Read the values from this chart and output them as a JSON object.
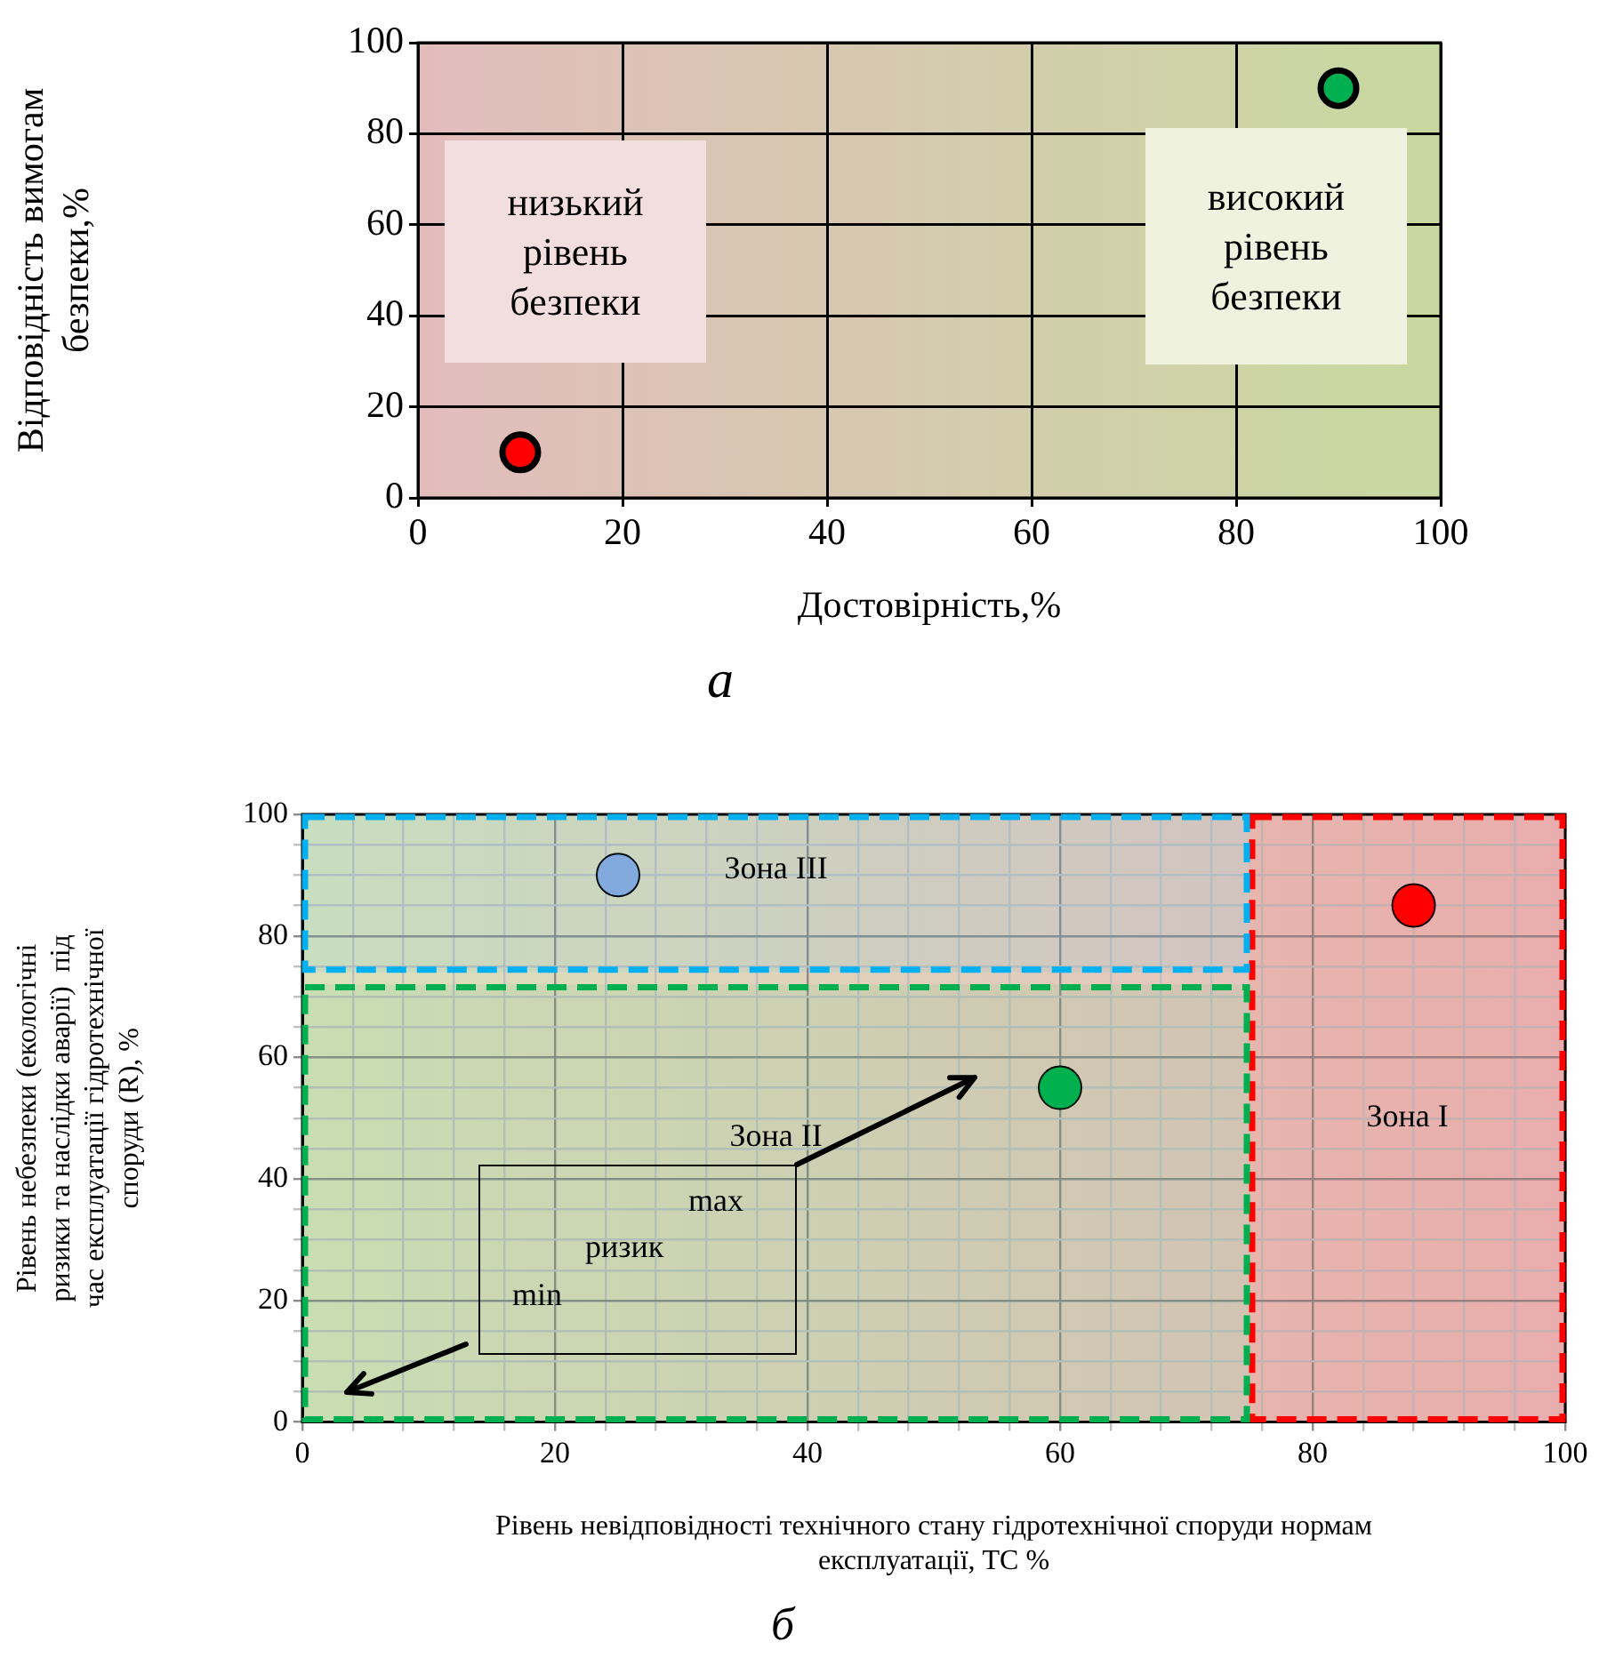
{
  "chart_data": [
    {
      "type": "scatter",
      "title": "а",
      "xlabel": "Достовірність,%",
      "ylabel": "Відповідність вимогам безпеки,%",
      "x": [
        10,
        90
      ],
      "values": [
        10,
        90
      ],
      "colors": [
        "#ff0000",
        "#00b050"
      ],
      "marker": "circle",
      "xlim": [
        0,
        100
      ],
      "ylim": [
        0,
        100
      ],
      "xticks": [
        0,
        20,
        40,
        60,
        80,
        100
      ],
      "yticks": [
        0,
        20,
        40,
        60,
        80,
        100
      ],
      "grid": true,
      "legend": false,
      "annotations": [
        "низький рівень безпеки",
        "високий рівень безпеки"
      ]
    },
    {
      "type": "scatter",
      "title": "б",
      "xlabel": "Рівень невідповідності технічного стану гідротехнічної споруди нормам експлуатації, ТС %",
      "ylabel": "Рівень небезпеки (екологічні ризики та наслідки аварії)  під час експлуатації гідротехнічної споруди (R), %",
      "x": [
        25,
        60,
        88
      ],
      "values": [
        90,
        55,
        85
      ],
      "colors": [
        "#8eaadb",
        "#00b050",
        "#ff0000"
      ],
      "marker": "circle",
      "xlim": [
        0,
        100
      ],
      "ylim": [
        0,
        100
      ],
      "xticks": [
        0,
        {
          "value": 4,
          "label": null
        },
        {
          "value": 8,
          "label": null
        },
        {
          "value": 12,
          "label": null
        },
        {
          "value": 16,
          "label": null
        },
        20,
        {
          "value": 24,
          "label": null
        },
        {
          "value": 28,
          "label": null
        },
        {
          "value": 32,
          "label": null
        },
        {
          "value": 36,
          "label": null
        },
        40,
        {
          "value": 44,
          "label": null
        },
        {
          "value": 48,
          "label": null
        },
        {
          "value": 52,
          "label": null
        },
        {
          "value": 56,
          "label": null
        },
        60,
        {
          "value": 64,
          "label": null
        },
        {
          "value": 68,
          "label": null
        },
        {
          "value": 72,
          "label": null
        },
        {
          "value": 76,
          "label": null
        },
        80,
        {
          "value": 84,
          "label": null
        },
        {
          "value": 88,
          "label": null
        },
        {
          "value": 92,
          "label": null
        },
        {
          "value": 96,
          "label": null
        },
        100
      ],
      "yticks": [
        0,
        {
          "value": 5,
          "label": null
        },
        {
          "value": 10,
          "label": null
        },
        {
          "value": 15,
          "label": null
        },
        20,
        {
          "value": 25,
          "label": null
        },
        {
          "value": 30,
          "label": null
        },
        {
          "value": 35,
          "label": null
        },
        40,
        {
          "value": 45,
          "label": null
        },
        {
          "value": 50,
          "label": null
        },
        {
          "value": 55,
          "label": null
        },
        60,
        {
          "value": 65,
          "label": null
        },
        {
          "value": 70,
          "label": null
        },
        {
          "value": 75,
          "label": null
        },
        80,
        {
          "value": 85,
          "label": null
        },
        {
          "value": 90,
          "label": null
        },
        {
          "value": 95,
          "label": null
        },
        100
      ],
      "grid": true,
      "legend": false,
      "bands": [
        {
          "axis": "x",
          "from": 75,
          "to": 100,
          "label": "Зона I",
          "color": "#ff0000"
        },
        {
          "axis": "y",
          "from": 0,
          "to": 72,
          "label": "Зона II",
          "color": "#00b050"
        },
        {
          "axis": "y",
          "from": 74,
          "to": 100,
          "label": "Зона III",
          "color": "#00b0f0"
        }
      ],
      "annotations": [
        "max",
        "ризик",
        "min"
      ]
    }
  ]
}
